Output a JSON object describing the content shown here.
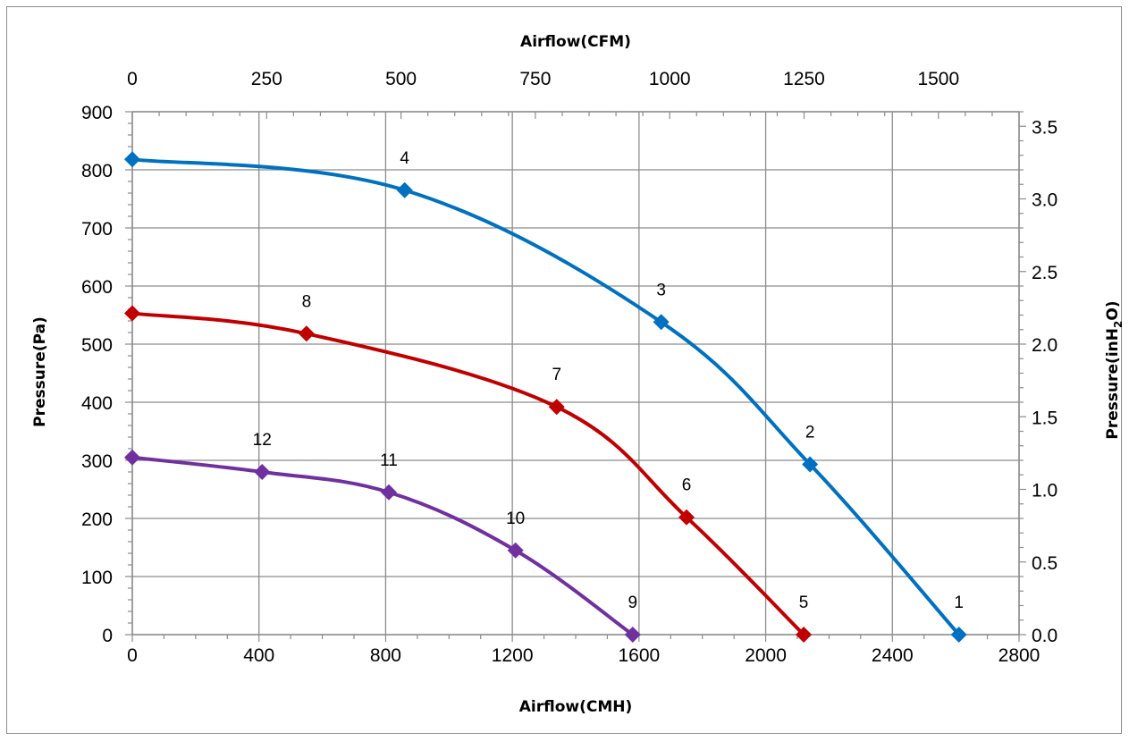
{
  "chart_data": {
    "type": "line",
    "title": "",
    "xlabel": "Airflow(CMH)",
    "x2label": "Airflow(CFM)",
    "ylabel": "Pressure(Pa)",
    "y2label_parts": [
      "Pressure(inH",
      "2",
      "O)"
    ],
    "xlim": [
      0,
      2800
    ],
    "ylim": [
      0,
      900
    ],
    "x2lim": [
      0,
      1650
    ],
    "y2lim": [
      0,
      3.6
    ],
    "x_ticks": [
      "0",
      "400",
      "800",
      "1200",
      "1600",
      "2000",
      "2400",
      "2800"
    ],
    "y_ticks": [
      "0",
      "100",
      "200",
      "300",
      "400",
      "500",
      "600",
      "700",
      "800",
      "900"
    ],
    "x2_ticks": [
      "0",
      "250",
      "500",
      "750",
      "1000",
      "1250",
      "1500"
    ],
    "y2_ticks": [
      "0.0",
      "0.5",
      "1.0",
      "1.5",
      "2.0",
      "2.5",
      "3.0",
      "3.5"
    ],
    "grid": true,
    "series": [
      {
        "color": "#0070c0",
        "x": [
          0,
          860,
          1670,
          2140,
          2610
        ],
        "y": [
          818,
          765,
          538,
          293,
          0
        ],
        "labels": [
          "",
          "4",
          "3",
          "2",
          "1"
        ]
      },
      {
        "color": "#c00000",
        "x": [
          0,
          550,
          1340,
          1750,
          2120
        ],
        "y": [
          553,
          518,
          392,
          202,
          0
        ],
        "labels": [
          "",
          "8",
          "7",
          "6",
          "5"
        ]
      },
      {
        "color": "#7030a0",
        "x": [
          0,
          410,
          810,
          1210,
          1580
        ],
        "y": [
          305,
          280,
          245,
          145,
          0
        ],
        "labels": [
          "",
          "12",
          "11",
          "10",
          "9"
        ]
      }
    ]
  }
}
